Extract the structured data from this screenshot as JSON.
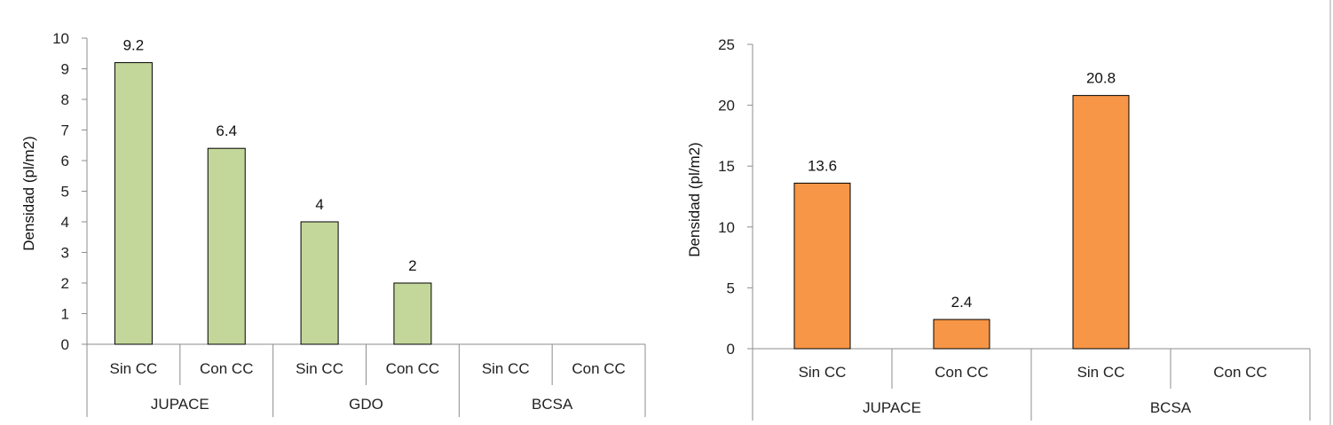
{
  "chart_data": [
    {
      "type": "bar",
      "ylabel": "Densidad (pl/m2)",
      "ylim": [
        0,
        10
      ],
      "yticks": [
        "0",
        "1",
        "2",
        "3",
        "4",
        "5",
        "6",
        "7",
        "8",
        "9",
        "10"
      ],
      "groups": [
        "JUPACE",
        "GDO",
        "BCSA"
      ],
      "categories": [
        "Sin CC",
        "Con CC",
        "Sin CC",
        "Con CC",
        "Sin CC",
        "Con CC"
      ],
      "values": [
        9.2,
        6.4,
        4,
        2,
        null,
        null
      ],
      "value_labels": [
        "9.2",
        "6.4",
        "4",
        "2",
        "",
        ""
      ],
      "color": "#c4d79b",
      "grid": false
    },
    {
      "type": "bar",
      "ylabel": "Densidad (pl/m2)",
      "ylim": [
        0,
        25
      ],
      "yticks": [
        "0",
        "5",
        "10",
        "15",
        "20",
        "25"
      ],
      "groups": [
        "JUPACE",
        "BCSA"
      ],
      "categories": [
        "Sin CC",
        "Con CC",
        "Sin CC",
        "Con CC"
      ],
      "values": [
        13.6,
        2.4,
        20.8,
        null
      ],
      "value_labels": [
        "13.6",
        "2.4",
        "20.8",
        ""
      ],
      "color": "#f79646",
      "grid": false
    }
  ]
}
